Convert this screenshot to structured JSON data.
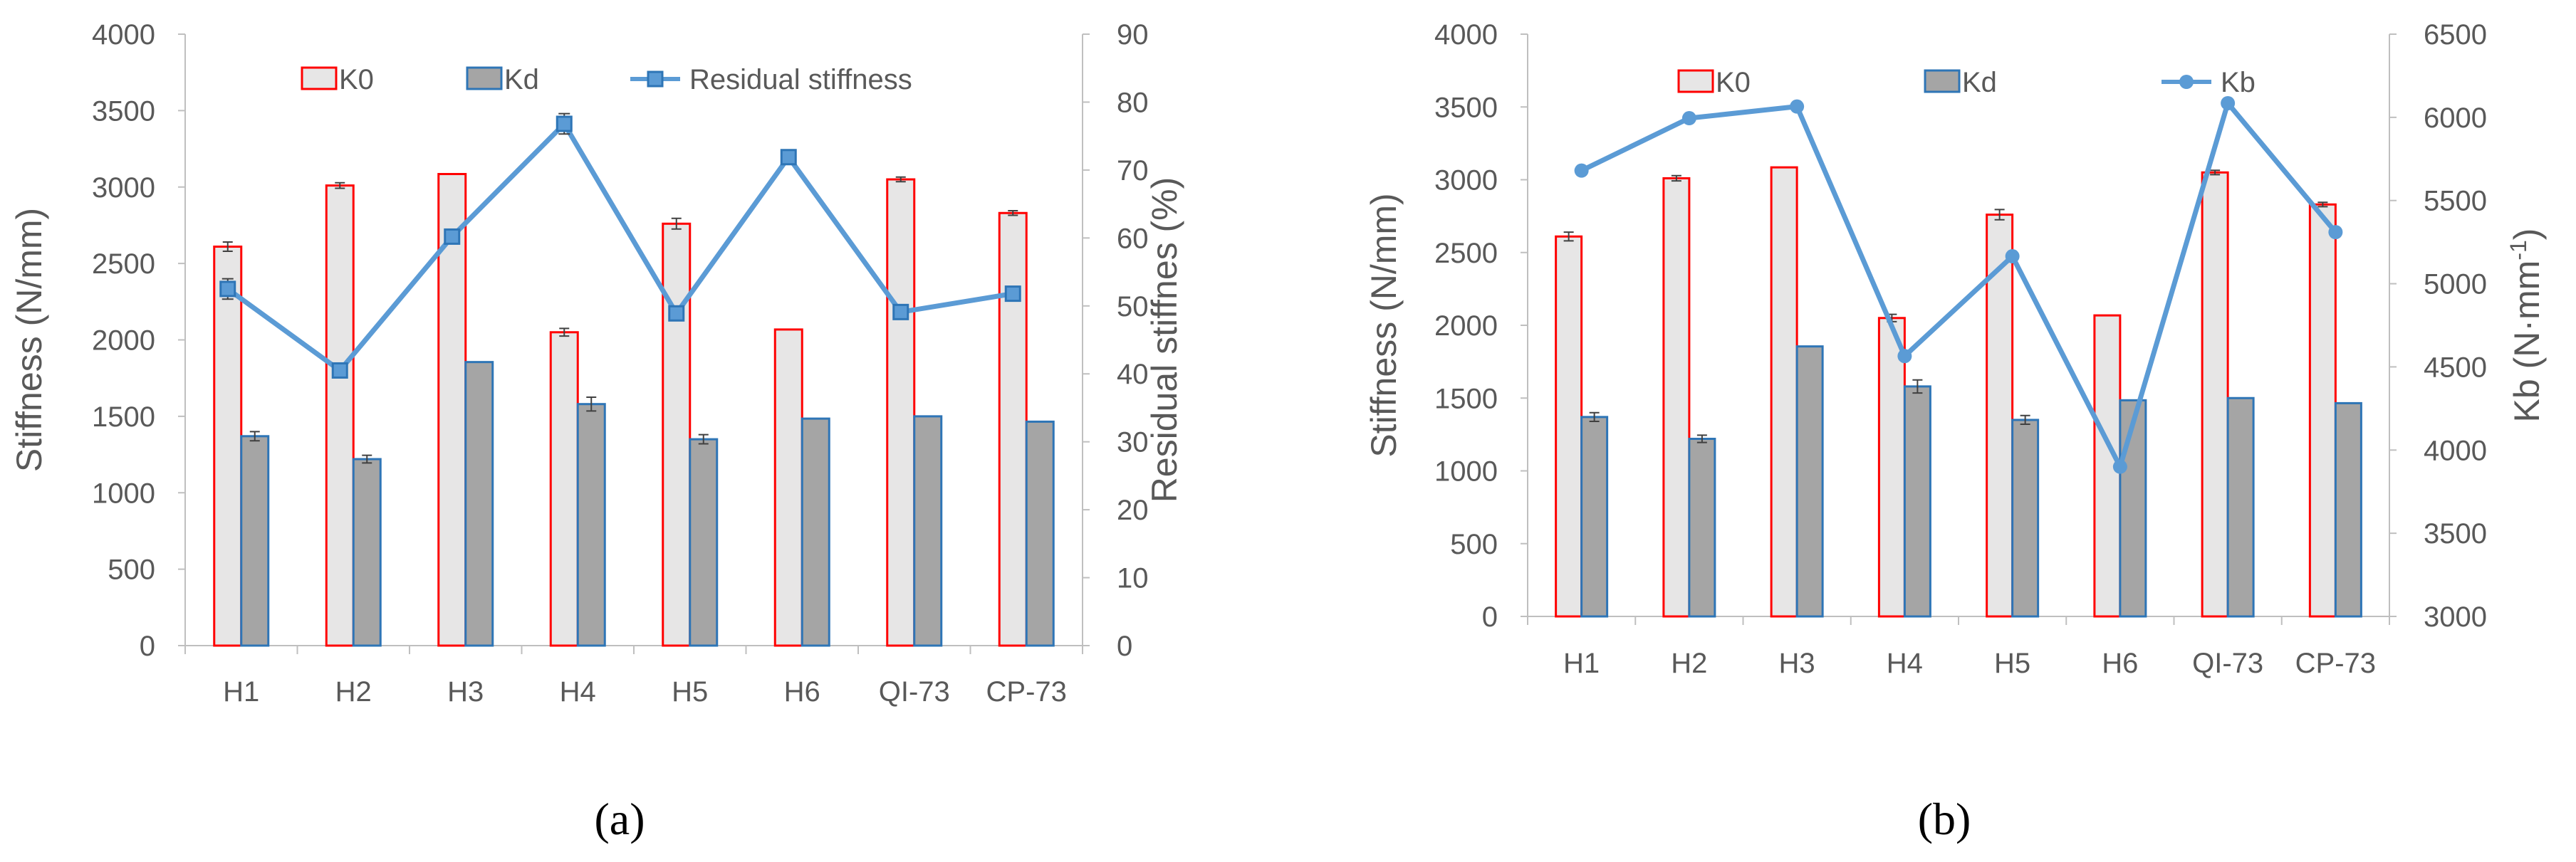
{
  "colors": {
    "k0_fill": "#e7e6e6",
    "k0_stroke": "#ff0000",
    "kd_fill": "#a5a5a5",
    "kd_stroke": "#2e75b6",
    "line": "#5b9bd5",
    "line_marker_a": "#2e75b6",
    "axis": "#bfbfbf",
    "text": "#595959",
    "error": "#404040"
  },
  "chart_data": [
    {
      "panel": "a",
      "type": "bar",
      "panel_label": "(a)",
      "categories": [
        "H1",
        "H2",
        "H3",
        "H4",
        "H5",
        "H6",
        "QI-73",
        "CP-73"
      ],
      "series": [
        {
          "name": "K0",
          "kind": "bar",
          "axis": "left",
          "values": [
            2610,
            3010,
            3085,
            2050,
            2760,
            2068,
            3050,
            2830
          ],
          "errors": [
            30,
            18,
            0,
            25,
            35,
            0,
            15,
            15
          ]
        },
        {
          "name": "Kd",
          "kind": "bar",
          "axis": "left",
          "values": [
            1370,
            1220,
            1855,
            1580,
            1350,
            1485,
            1500,
            1465
          ],
          "errors": [
            30,
            25,
            0,
            45,
            30,
            0,
            0,
            0
          ]
        },
        {
          "name": "Residual stiffness",
          "kind": "line",
          "axis": "right",
          "marker": "square",
          "values": [
            52.5,
            40.5,
            60.2,
            76.8,
            48.9,
            71.9,
            49.1,
            51.8
          ],
          "errors": [
            1.5,
            0.5,
            0,
            1.5,
            0,
            0,
            0,
            0
          ]
        }
      ],
      "ylabel": "Stiffness  (N/mm)",
      "ylim": [
        0,
        4000
      ],
      "yticks": [
        "0",
        "500",
        "1000",
        "1500",
        "2000",
        "2500",
        "3000",
        "3500",
        "4000"
      ],
      "ylabel_right": "Residual stiffnes (%)",
      "ylim_right": [
        0,
        90
      ],
      "yticks_right": [
        "0",
        "10",
        "20",
        "30",
        "40",
        "50",
        "60",
        "70",
        "80",
        "90"
      ],
      "legend": [
        "K0",
        "Kd",
        "Residual stiffness"
      ],
      "legend_position": "top"
    },
    {
      "panel": "b",
      "type": "bar",
      "panel_label": "(b)",
      "categories": [
        "H1",
        "H2",
        "H3",
        "H4",
        "H5",
        "H6",
        "QI-73",
        "CP-73"
      ],
      "series": [
        {
          "name": "K0",
          "kind": "bar",
          "axis": "left",
          "values": [
            2610,
            3010,
            3085,
            2050,
            2760,
            2068,
            3050,
            2830
          ],
          "errors": [
            30,
            18,
            0,
            25,
            35,
            0,
            15,
            15
          ]
        },
        {
          "name": "Kd",
          "kind": "bar",
          "axis": "left",
          "values": [
            1370,
            1220,
            1855,
            1580,
            1350,
            1485,
            1500,
            1465
          ],
          "errors": [
            30,
            25,
            0,
            45,
            30,
            0,
            0,
            0
          ]
        },
        {
          "name": "Kb",
          "kind": "line",
          "axis": "right",
          "marker": "circle",
          "values": [
            5680,
            5995,
            6065,
            4565,
            5165,
            3900,
            6085,
            5310
          ],
          "errors": [
            0,
            0,
            0,
            0,
            0,
            0,
            0,
            0
          ]
        }
      ],
      "ylabel": "Stiffness (N/mm)",
      "ylim": [
        0,
        4000
      ],
      "yticks": [
        "0",
        "500",
        "1000",
        "1500",
        "2000",
        "2500",
        "3000",
        "3500",
        "4000"
      ],
      "ylabel_right": "Kb (N·mm",
      "ylabel_right_sup": "-1",
      "ylabel_right_close": ")",
      "ylim_right": [
        3000,
        6500
      ],
      "yticks_right": [
        "3000",
        "3500",
        "4000",
        "4500",
        "5000",
        "5500",
        "6000",
        "6500"
      ],
      "legend": [
        "K0",
        "Kd",
        "Kb"
      ],
      "legend_position": "top"
    }
  ]
}
